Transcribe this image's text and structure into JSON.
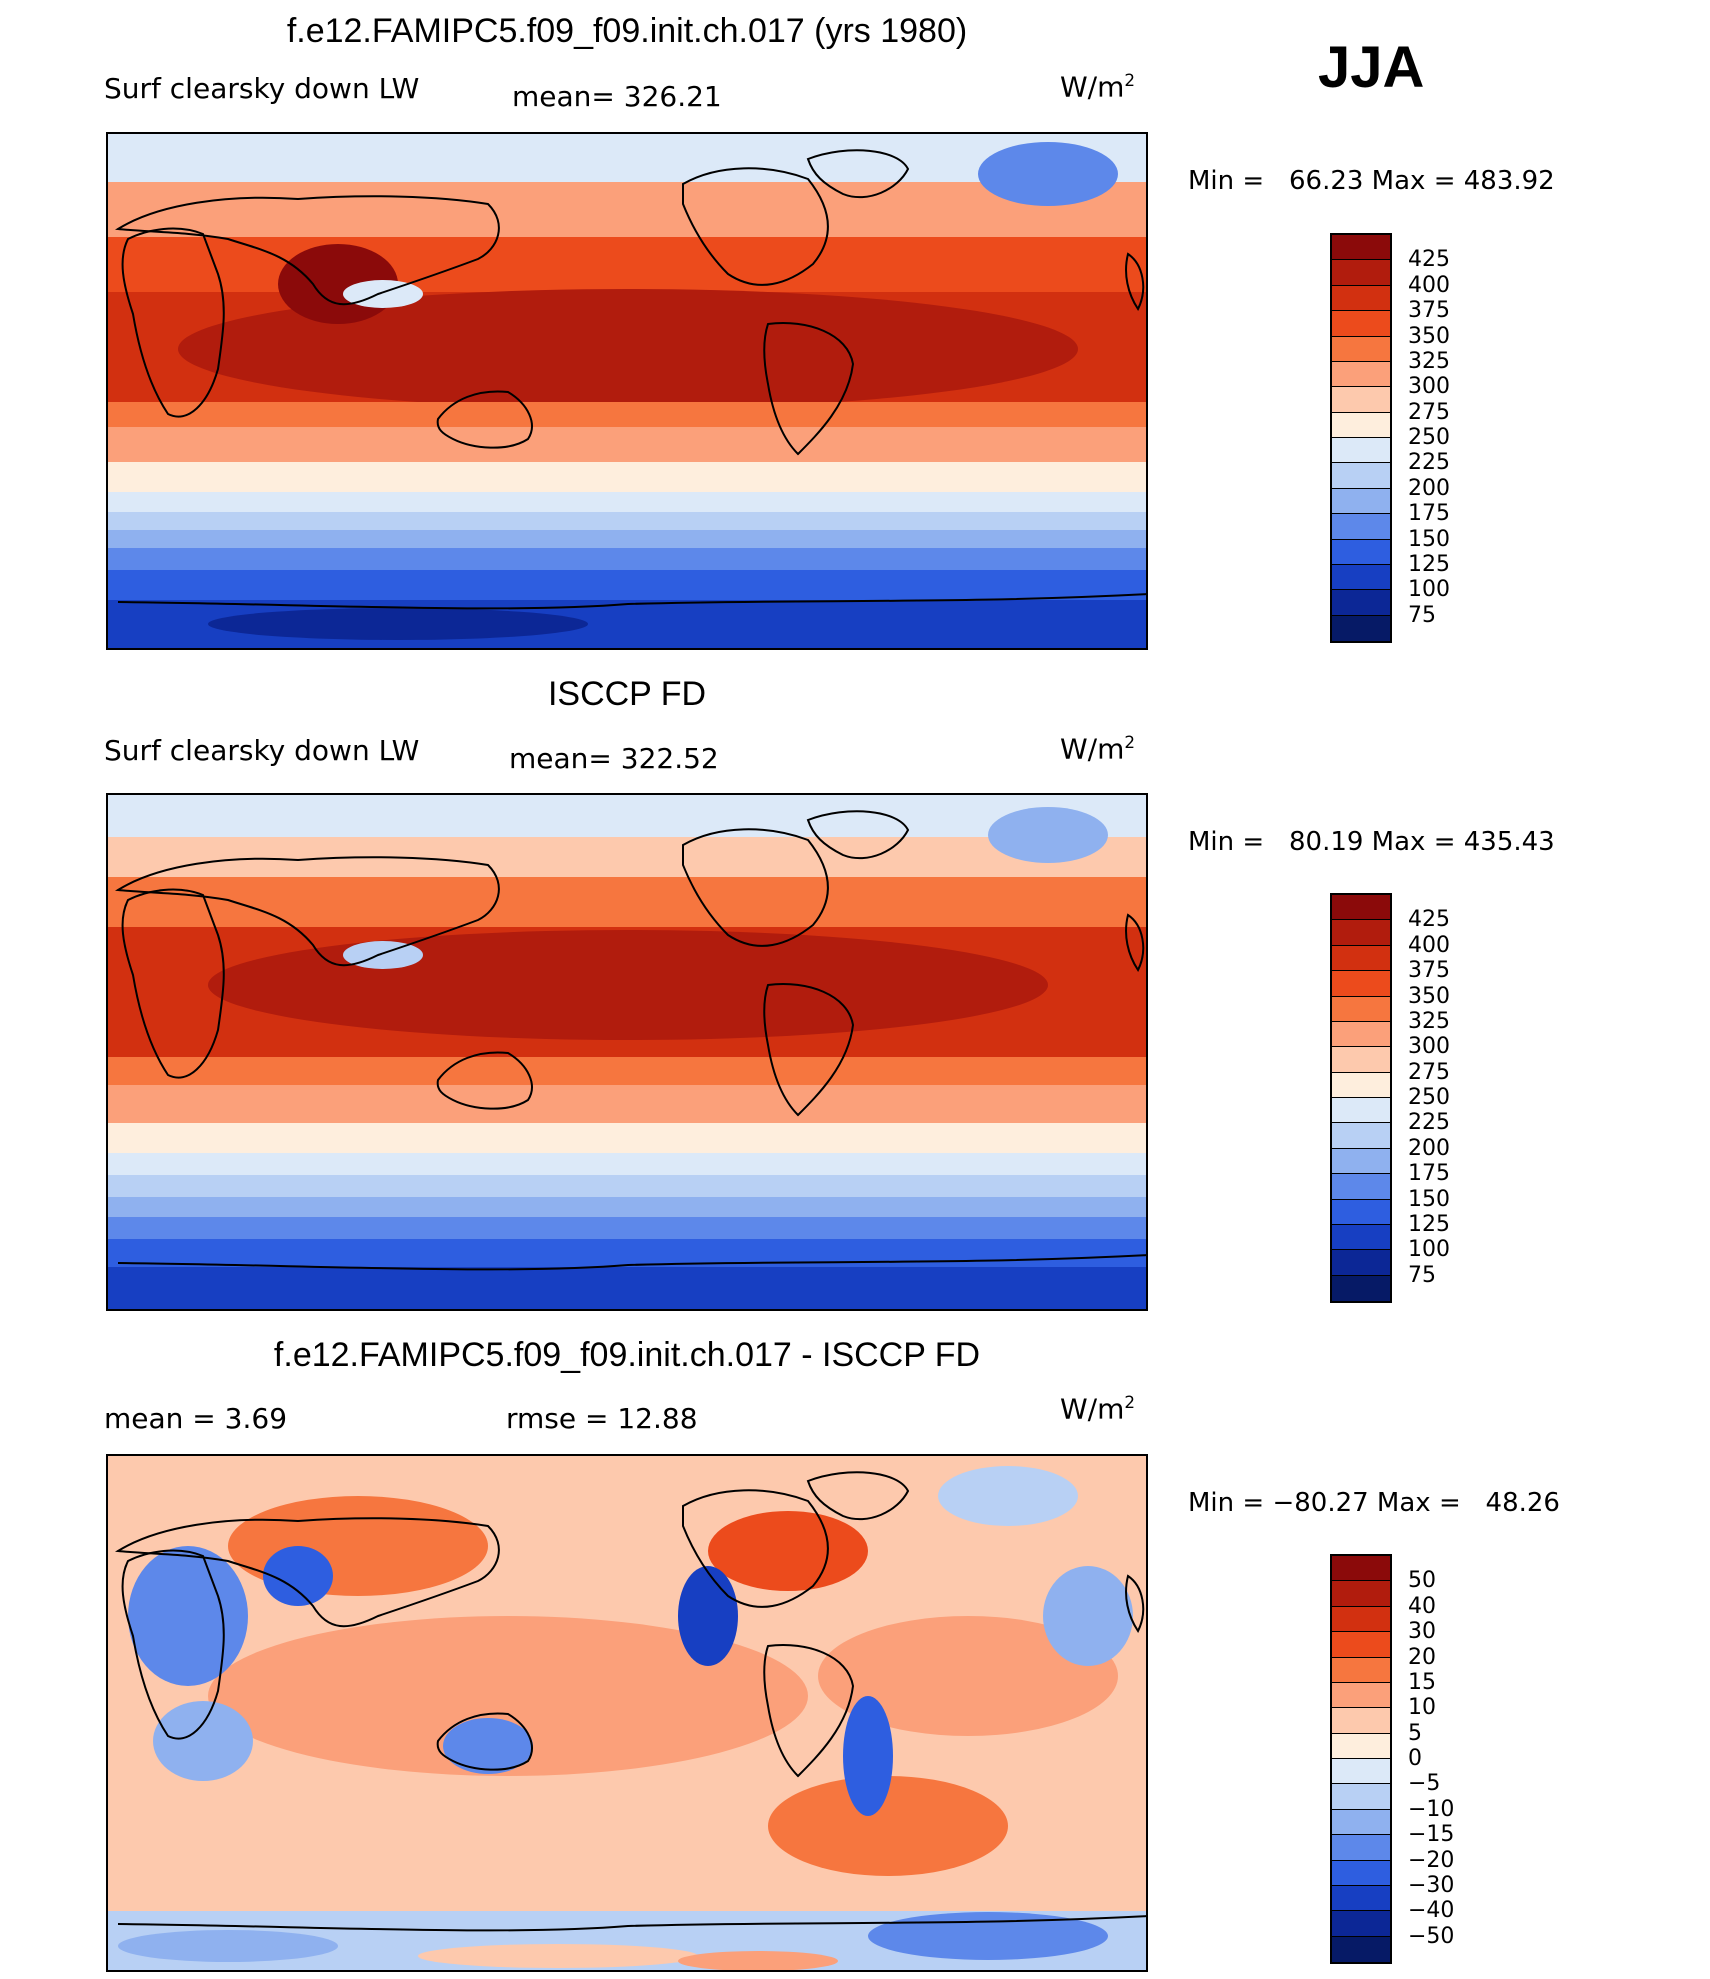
{
  "season": "JJA",
  "panels": [
    {
      "title": "f.e12.FAMIPC5.f09_f09.init.ch.017 (yrs 1980)",
      "variable": "Surf clearsky down LW",
      "stat": "mean= 326.21",
      "units_base": "W/m",
      "units_exp": "2",
      "minmax": "Min =   66.23 Max = 483.92",
      "colorbar_labels": [
        "425",
        "400",
        "375",
        "350",
        "325",
        "300",
        "275",
        "250",
        "225",
        "200",
        "175",
        "150",
        "125",
        "100",
        "75"
      ],
      "colorbar_colors": [
        "#8b0a0a",
        "#b11c0d",
        "#d23010",
        "#ec4b1c",
        "#f6763f",
        "#fba07a",
        "#fdc9ad",
        "#feeedd",
        "#dce9f8",
        "#b8d0f4",
        "#8fb1ef",
        "#5d88ea",
        "#2e5ee0",
        "#173fc2",
        "#0c2796",
        "#061a66"
      ]
    },
    {
      "title": "ISCCP FD",
      "variable": "Surf clearsky down LW",
      "stat": "mean= 322.52",
      "units_base": "W/m",
      "units_exp": "2",
      "minmax": "Min =   80.19 Max = 435.43",
      "colorbar_labels": [
        "425",
        "400",
        "375",
        "350",
        "325",
        "300",
        "275",
        "250",
        "225",
        "200",
        "175",
        "150",
        "125",
        "100",
        "75"
      ],
      "colorbar_colors": [
        "#8b0a0a",
        "#b11c0d",
        "#d23010",
        "#ec4b1c",
        "#f6763f",
        "#fba07a",
        "#fdc9ad",
        "#feeedd",
        "#dce9f8",
        "#b8d0f4",
        "#8fb1ef",
        "#5d88ea",
        "#2e5ee0",
        "#173fc2",
        "#0c2796",
        "#061a66"
      ]
    },
    {
      "title": "f.e12.FAMIPC5.f09_f09.init.ch.017 - ISCCP FD",
      "variable": "mean =    3.69",
      "stat": "rmse =    12.88",
      "units_base": "W/m",
      "units_exp": "2",
      "minmax": "Min = −80.27 Max =   48.26",
      "colorbar_labels": [
        "50",
        "40",
        "30",
        "20",
        "15",
        "10",
        "5",
        "0",
        "−5",
        "−10",
        "−15",
        "−20",
        "−30",
        "−40",
        "−50"
      ],
      "colorbar_colors": [
        "#8b0a0a",
        "#b11c0d",
        "#d23010",
        "#ec4b1c",
        "#f6763f",
        "#fba07a",
        "#fdc9ad",
        "#feeedd",
        "#dce9f8",
        "#b8d0f4",
        "#8fb1ef",
        "#5d88ea",
        "#2e5ee0",
        "#173fc2",
        "#0c2796",
        "#061a66"
      ]
    }
  ]
}
